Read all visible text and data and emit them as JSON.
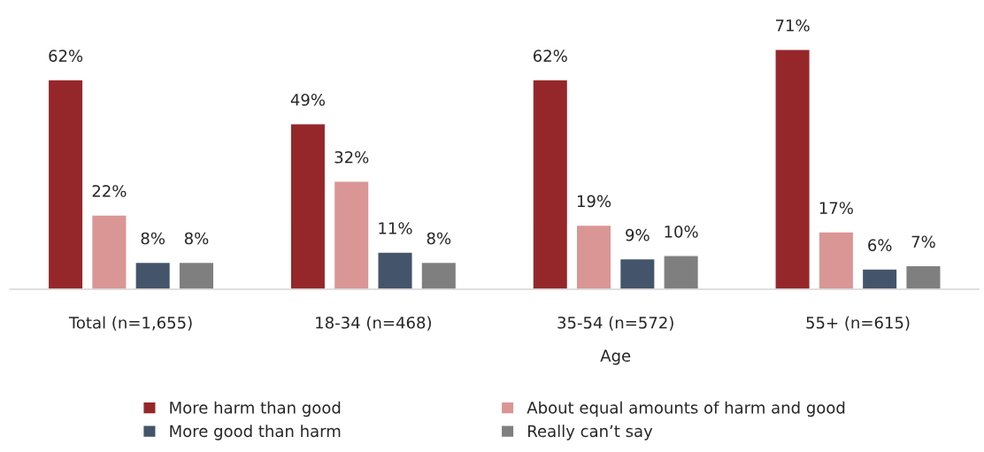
{
  "chart_data": {
    "type": "bar",
    "categories": [
      "Total (n=1,655)",
      "18-34 (n=468)",
      "35-54 (n=572)",
      "55+ (n=615)"
    ],
    "series": [
      {
        "name": "More harm than good",
        "color": "#95272a",
        "values": [
          62,
          49,
          62,
          71
        ],
        "value_labels": [
          "62%",
          "49%",
          "62%",
          "71%"
        ]
      },
      {
        "name": "About equal amounts of harm and good",
        "color": "#d99694",
        "values": [
          22,
          32,
          19,
          17
        ],
        "value_labels": [
          "22%",
          "32%",
          "19%",
          "17%"
        ]
      },
      {
        "name": "More good than harm",
        "color": "#44546a",
        "values": [
          8,
          11,
          9,
          6
        ],
        "value_labels": [
          "8%",
          "11%",
          "9%",
          "6%"
        ]
      },
      {
        "name": "Really can’t say",
        "color": "#7f7f7f",
        "values": [
          8,
          8,
          10,
          7
        ],
        "value_labels": [
          "8%",
          "8%",
          "10%",
          "7%"
        ]
      }
    ],
    "annotations": [
      "Age"
    ],
    "tick_labels": "x",
    "legend": "bottom"
  }
}
